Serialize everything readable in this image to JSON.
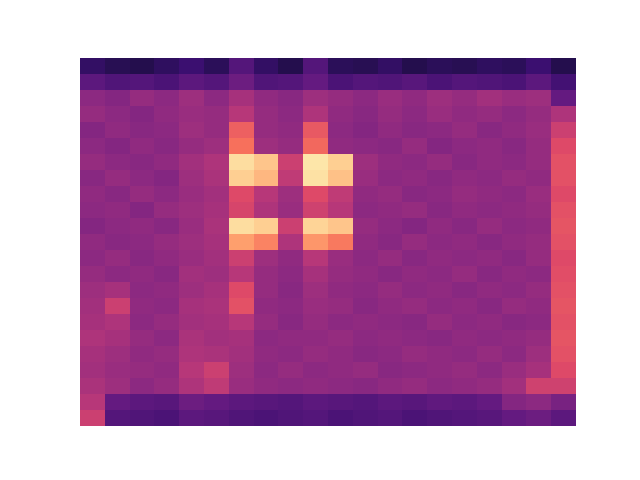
{
  "chart_data": {
    "type": "heatmap",
    "color": "magma",
    "tick_labels": false,
    "zlim": [
      0,
      100
    ],
    "cells": [
      [
        18,
        15,
        14,
        17,
        20,
        16,
        26,
        18,
        14,
        26,
        16,
        15,
        18,
        14,
        16,
        15,
        17,
        16,
        20,
        14
      ],
      [
        28,
        25,
        26,
        24,
        28,
        26,
        32,
        25,
        26,
        30,
        24,
        26,
        25,
        27,
        24,
        26,
        25,
        24,
        28,
        22
      ],
      [
        40,
        38,
        42,
        40,
        44,
        40,
        46,
        41,
        39,
        44,
        42,
        40,
        43,
        41,
        44,
        42,
        45,
        43,
        44,
        30
      ],
      [
        42,
        40,
        38,
        41,
        43,
        42,
        50,
        42,
        40,
        48,
        41,
        39,
        42,
        40,
        43,
        41,
        42,
        40,
        42,
        48
      ],
      [
        38,
        41,
        39,
        40,
        44,
        42,
        66,
        42,
        41,
        64,
        40,
        38,
        41,
        39,
        40,
        42,
        39,
        41,
        43,
        55
      ],
      [
        40,
        38,
        41,
        39,
        42,
        44,
        70,
        44,
        42,
        68,
        41,
        40,
        39,
        42,
        38,
        40,
        41,
        39,
        42,
        60
      ],
      [
        42,
        40,
        39,
        41,
        45,
        48,
        93,
        88,
        55,
        95,
        90,
        44,
        41,
        40,
        42,
        39,
        41,
        40,
        42,
        62
      ],
      [
        39,
        42,
        40,
        38,
        44,
        47,
        90,
        85,
        52,
        94,
        87,
        43,
        40,
        41,
        39,
        41,
        40,
        42,
        41,
        62
      ],
      [
        41,
        39,
        42,
        40,
        43,
        45,
        60,
        50,
        44,
        60,
        52,
        41,
        42,
        39,
        40,
        42,
        41,
        40,
        43,
        60
      ],
      [
        40,
        41,
        38,
        42,
        44,
        46,
        58,
        48,
        43,
        56,
        50,
        40,
        41,
        42,
        39,
        41,
        40,
        41,
        42,
        62
      ],
      [
        38,
        40,
        41,
        39,
        43,
        47,
        93,
        90,
        55,
        91,
        88,
        42,
        40,
        38,
        41,
        39,
        42,
        40,
        41,
        63
      ],
      [
        41,
        39,
        40,
        42,
        44,
        46,
        80,
        74,
        48,
        78,
        72,
        41,
        39,
        42,
        40,
        41,
        39,
        41,
        42,
        62
      ],
      [
        40,
        42,
        39,
        41,
        43,
        45,
        55,
        44,
        41,
        50,
        43,
        40,
        42,
        39,
        41,
        40,
        41,
        39,
        42,
        60
      ],
      [
        42,
        40,
        41,
        39,
        45,
        44,
        50,
        42,
        40,
        46,
        42,
        41,
        39,
        41,
        40,
        42,
        39,
        41,
        40,
        61
      ],
      [
        44,
        46,
        40,
        41,
        44,
        46,
        60,
        42,
        39,
        44,
        41,
        40,
        42,
        40,
        41,
        39,
        41,
        40,
        42,
        62
      ],
      [
        45,
        55,
        41,
        40,
        46,
        47,
        62,
        41,
        40,
        43,
        42,
        39,
        41,
        42,
        40,
        41,
        39,
        42,
        41,
        63
      ],
      [
        46,
        48,
        40,
        42,
        45,
        46,
        50,
        42,
        39,
        42,
        40,
        41,
        40,
        39,
        42,
        40,
        41,
        39,
        40,
        62
      ],
      [
        48,
        46,
        42,
        40,
        47,
        45,
        46,
        40,
        41,
        41,
        42,
        40,
        41,
        40,
        39,
        41,
        40,
        41,
        42,
        63
      ],
      [
        46,
        44,
        41,
        42,
        48,
        47,
        45,
        41,
        40,
        42,
        41,
        39,
        40,
        42,
        41,
        40,
        42,
        40,
        44,
        62
      ],
      [
        45,
        43,
        42,
        41,
        50,
        55,
        44,
        40,
        42,
        40,
        41,
        42,
        39,
        40,
        41,
        42,
        40,
        43,
        46,
        60
      ],
      [
        47,
        44,
        40,
        42,
        48,
        52,
        43,
        41,
        40,
        41,
        40,
        39,
        41,
        42,
        40,
        41,
        42,
        45,
        56,
        56
      ],
      [
        50,
        30,
        28,
        27,
        32,
        30,
        28,
        27,
        26,
        28,
        27,
        26,
        28,
        27,
        29,
        28,
        30,
        38,
        40,
        35
      ],
      [
        55,
        26,
        25,
        24,
        28,
        27,
        25,
        24,
        25,
        26,
        24,
        25,
        26,
        24,
        25,
        26,
        27,
        30,
        32,
        28
      ]
    ]
  }
}
